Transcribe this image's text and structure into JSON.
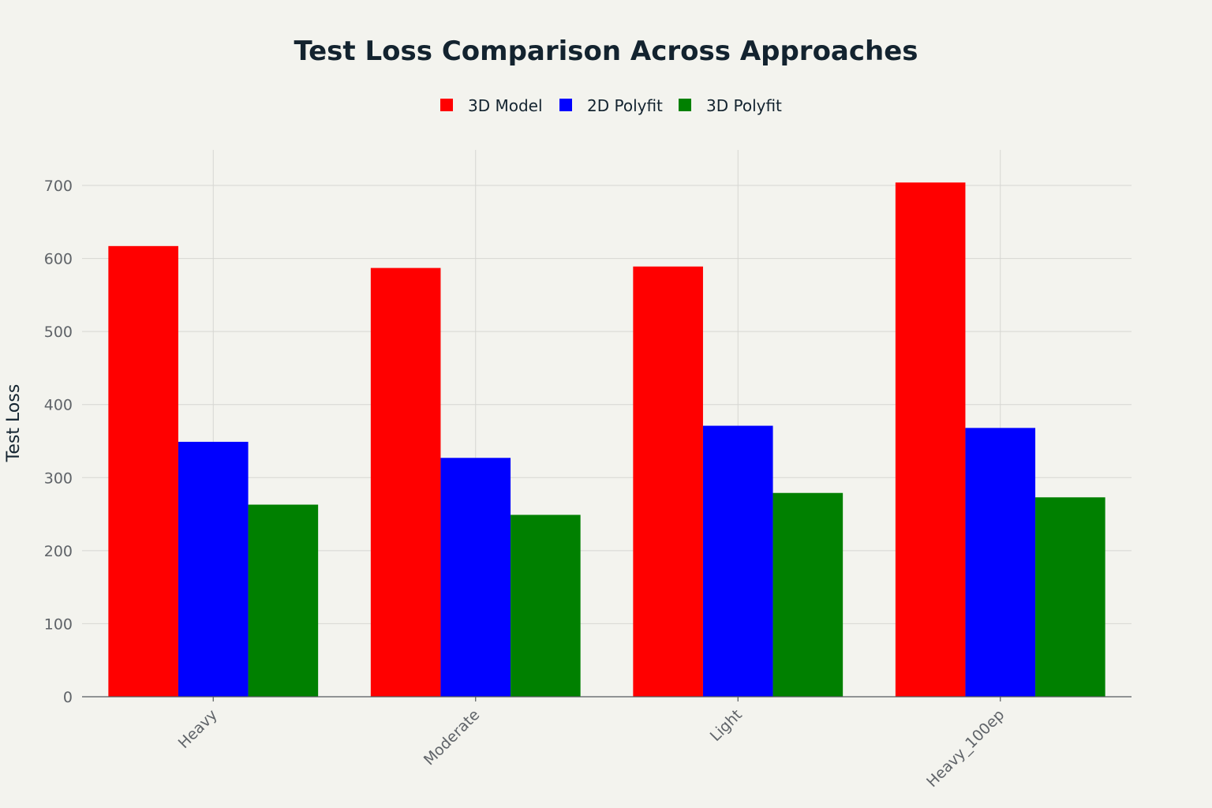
{
  "chart_data": {
    "type": "bar",
    "title": "Test Loss Comparison Across Approaches",
    "xlabel": "",
    "ylabel": "Test Loss",
    "categories": [
      "Heavy",
      "Moderate",
      "Light",
      "Heavy_100ep"
    ],
    "series": [
      {
        "name": "3D Model",
        "color": "#ff0000",
        "values": [
          617,
          587,
          589,
          704
        ]
      },
      {
        "name": "2D Polyfit",
        "color": "#0000ff",
        "values": [
          349,
          327,
          371,
          368
        ]
      },
      {
        "name": "3D Polyfit",
        "color": "#008000",
        "values": [
          263,
          249,
          279,
          273
        ]
      }
    ],
    "ylim": [
      0,
      750
    ],
    "yticks": [
      "0",
      "100",
      "200",
      "300",
      "400",
      "500",
      "600",
      "700"
    ],
    "grid": true,
    "legend_position": "top-center"
  }
}
